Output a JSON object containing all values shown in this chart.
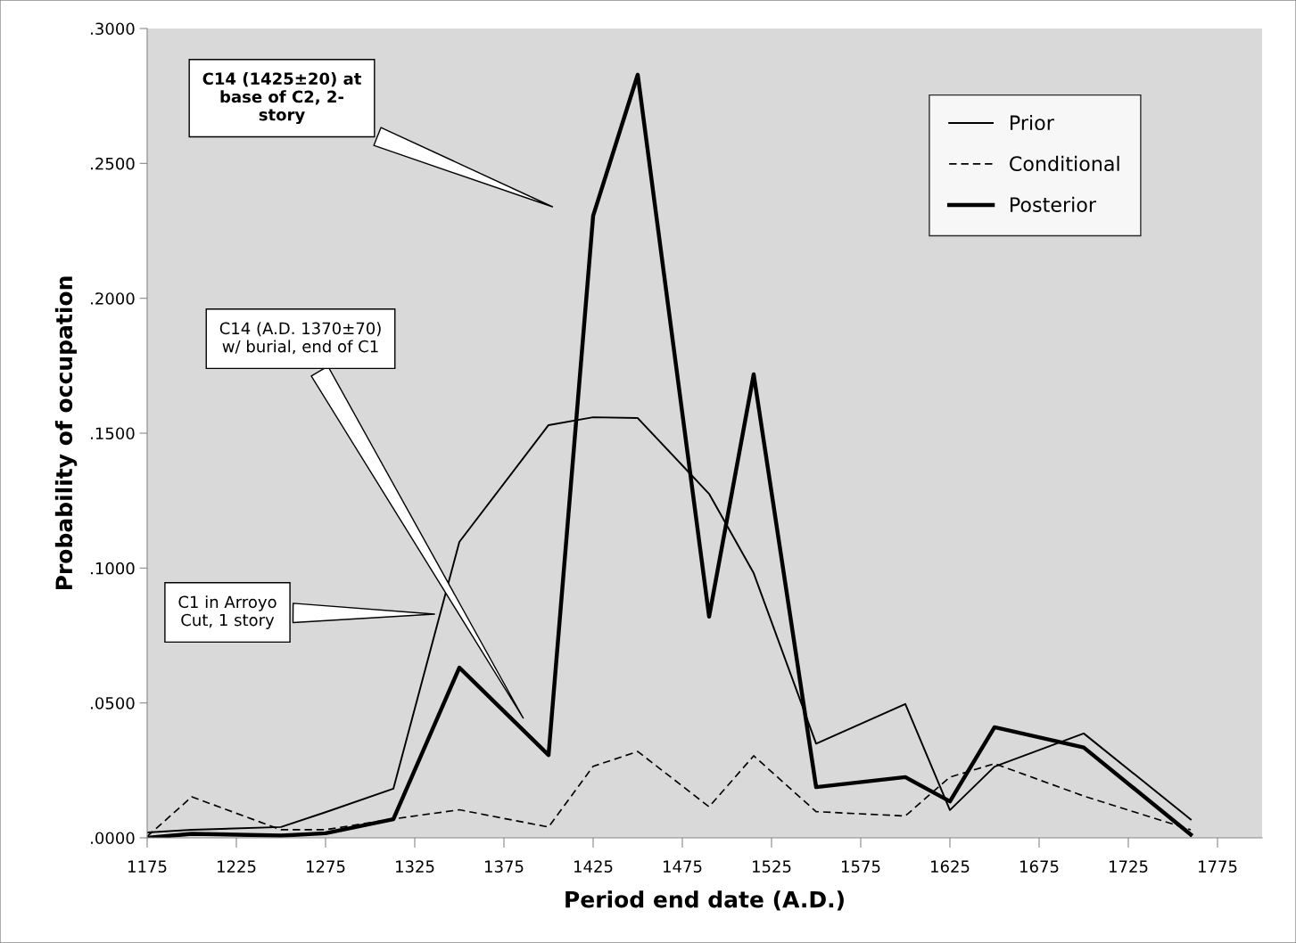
{
  "chart_data": {
    "type": "line",
    "xlabel": "Period end date (A.D.)",
    "ylabel": "Probability of occupation",
    "x": [
      1175,
      1200,
      1250,
      1275,
      1313,
      1350,
      1400,
      1425,
      1450,
      1490,
      1515,
      1550,
      1600,
      1625,
      1650,
      1700,
      1760
    ],
    "series": [
      {
        "name": "Prior",
        "color": "#000000",
        "line_style": "solid",
        "values": [
          0.002,
          0.003,
          0.004,
          0.0095,
          0.0182,
          0.1097,
          0.153,
          0.1559,
          0.1556,
          0.1275,
          0.0981,
          0.0349,
          0.0496,
          0.0103,
          0.0264,
          0.0387,
          0.0068
        ]
      },
      {
        "name": "Conditional",
        "color": "#000000",
        "line_style": "dashed",
        "values": [
          0.0005,
          0.0152,
          0.003,
          0.003,
          0.007,
          0.0104,
          0.004,
          0.0265,
          0.032,
          0.0115,
          0.0304,
          0.0097,
          0.0081,
          0.0225,
          0.0275,
          0.0155,
          0.003
        ]
      },
      {
        "name": "Posterior",
        "color": "#000000",
        "line_style": "solid",
        "values": [
          0.0,
          0.0015,
          0.0008,
          0.0017,
          0.0069,
          0.0631,
          0.0307,
          0.2306,
          0.2829,
          0.082,
          0.1718,
          0.0188,
          0.0225,
          0.0135,
          0.041,
          0.0335,
          0.0012
        ]
      }
    ],
    "xlim": [
      1175,
      1800
    ],
    "xticks": [
      1175,
      1225,
      1275,
      1325,
      1375,
      1425,
      1475,
      1525,
      1575,
      1625,
      1675,
      1725,
      1775
    ],
    "ylim": [
      0,
      0.3
    ],
    "yticks": [
      {
        "value": 0,
        "label": ".0000"
      },
      {
        "value": 0.05,
        "label": ".0500"
      },
      {
        "value": 0.1,
        "label": ".1000"
      },
      {
        "value": 0.15,
        "label": ".1500"
      },
      {
        "value": 0.2,
        "label": ".2000"
      },
      {
        "value": 0.25,
        "label": ".2500"
      },
      {
        "value": 0.3,
        "label": ".3000"
      }
    ],
    "grid": false,
    "legend": "top right",
    "marker": "none",
    "annotations": [
      "C14 (1425±20) at\nbase of C2, 2-\nstory",
      "C14 (A.D. 1370±70)\nw/ burial, end of C1",
      "C1 in Arroyo\nCut, 1 story"
    ]
  }
}
